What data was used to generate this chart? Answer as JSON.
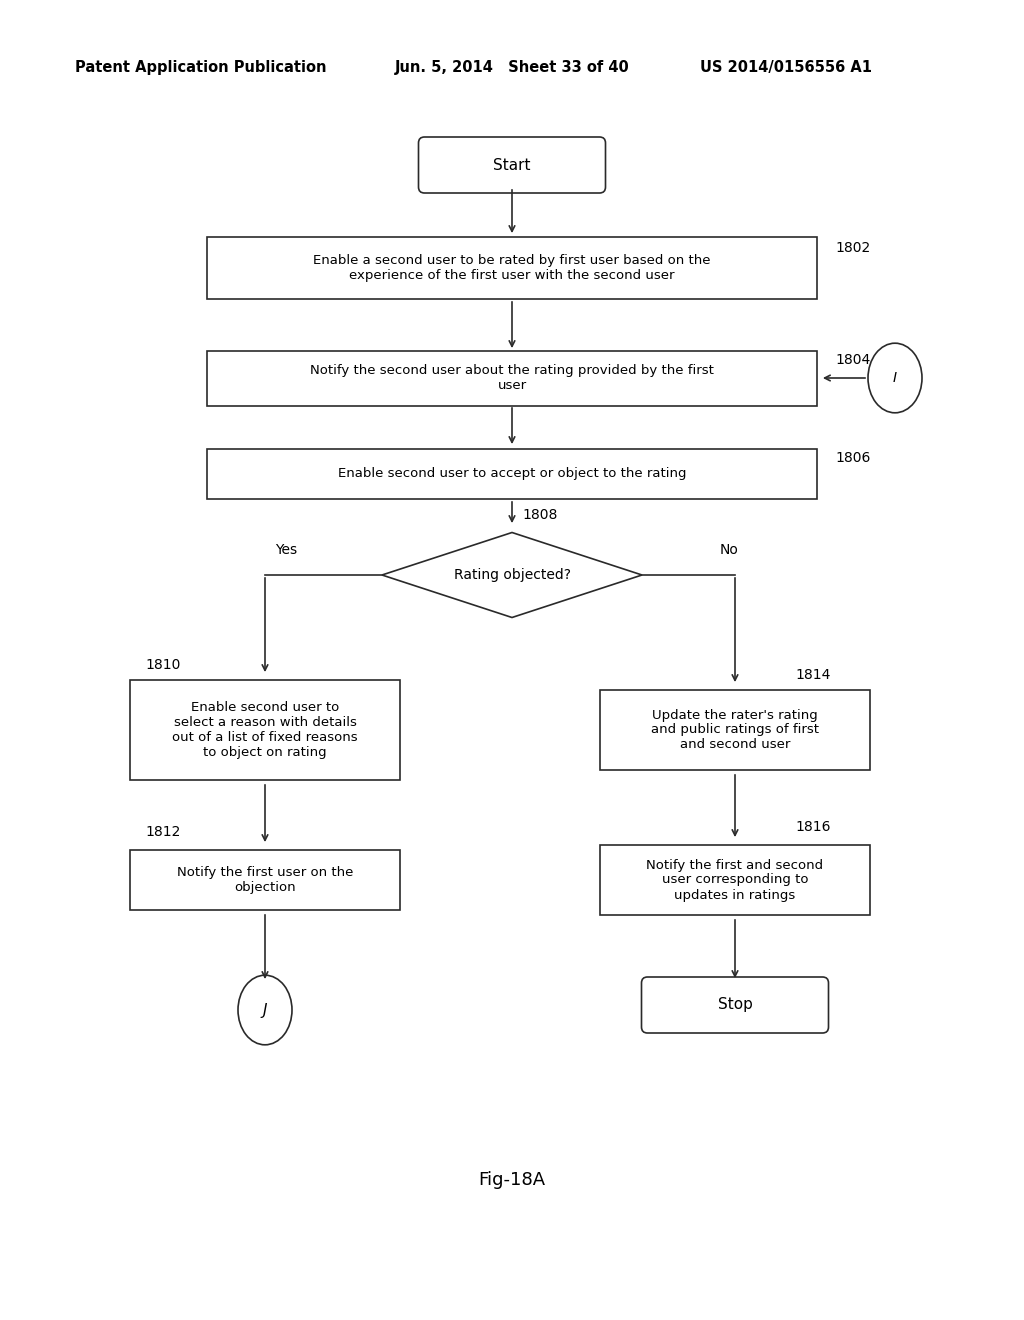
{
  "bg_color": "#ffffff",
  "header_left": "Patent Application Publication",
  "header_mid": "Jun. 5, 2014   Sheet 33 of 40",
  "header_right": "US 2014/0156556 A1",
  "caption": "Fig-18A",
  "header_fontsize": 10.5,
  "text_fontsize": 9.5,
  "label_fontsize": 10
}
